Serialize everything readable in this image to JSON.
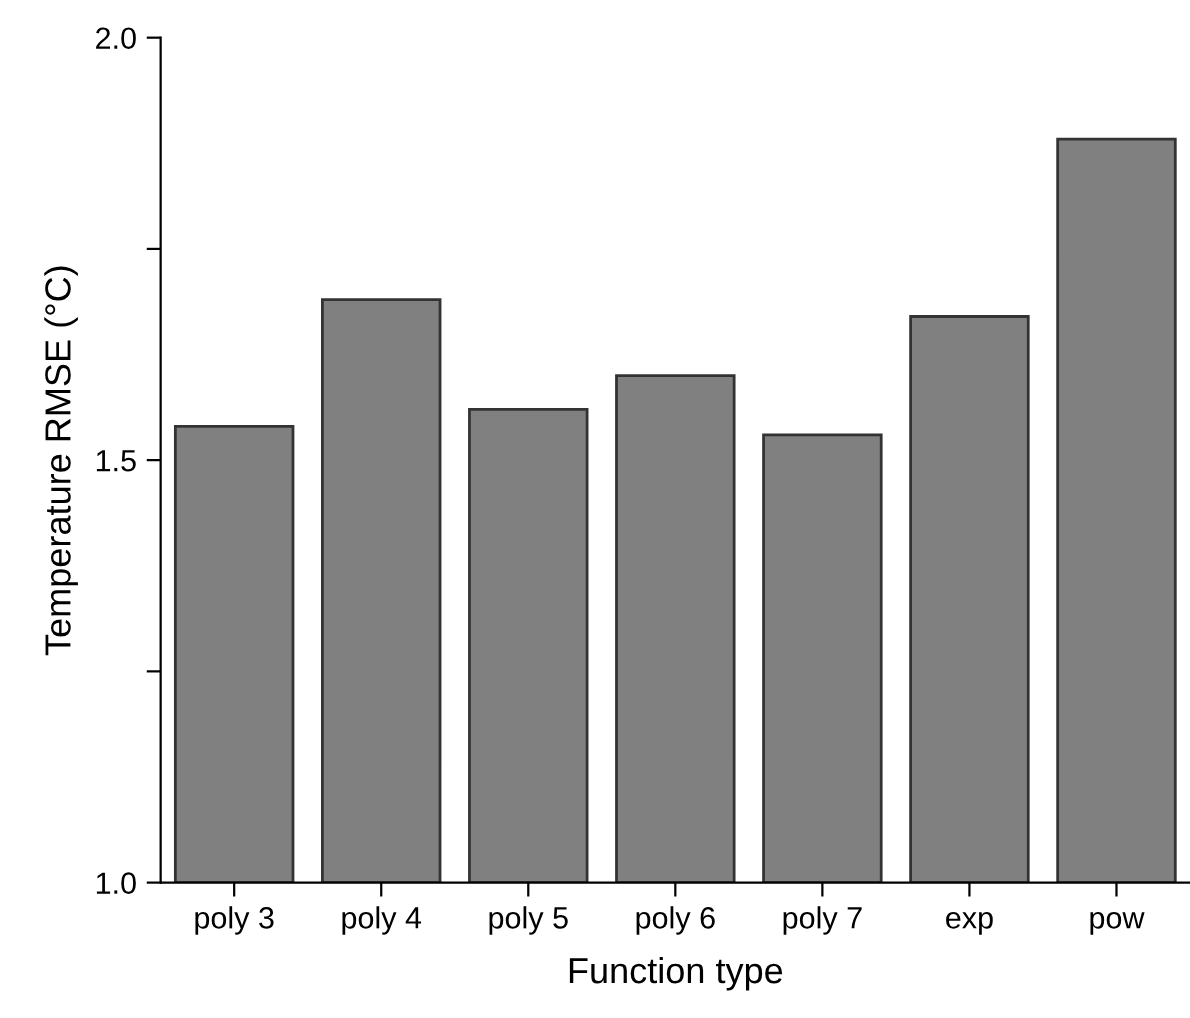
{
  "chart_data": {
    "type": "bar",
    "xlabel": "Function type",
    "ylabel": "Temperature RMSE (°C)",
    "categories": [
      "poly 3",
      "poly 4",
      "poly 5",
      "poly 6",
      "poly 7",
      "exp",
      "pow"
    ],
    "values": [
      1.54,
      1.69,
      1.56,
      1.6,
      1.53,
      1.67,
      1.88
    ],
    "color": "#808080",
    "ylim": [
      1.0,
      2.0
    ],
    "yticks": [
      {
        "value": 1.0,
        "label": "1.0"
      },
      {
        "value": 1.25,
        "label": null
      },
      {
        "value": 1.5,
        "label": "1.5"
      },
      {
        "value": 1.75,
        "label": null
      },
      {
        "value": 2.0,
        "label": "2.0"
      }
    ],
    "grid": false
  }
}
